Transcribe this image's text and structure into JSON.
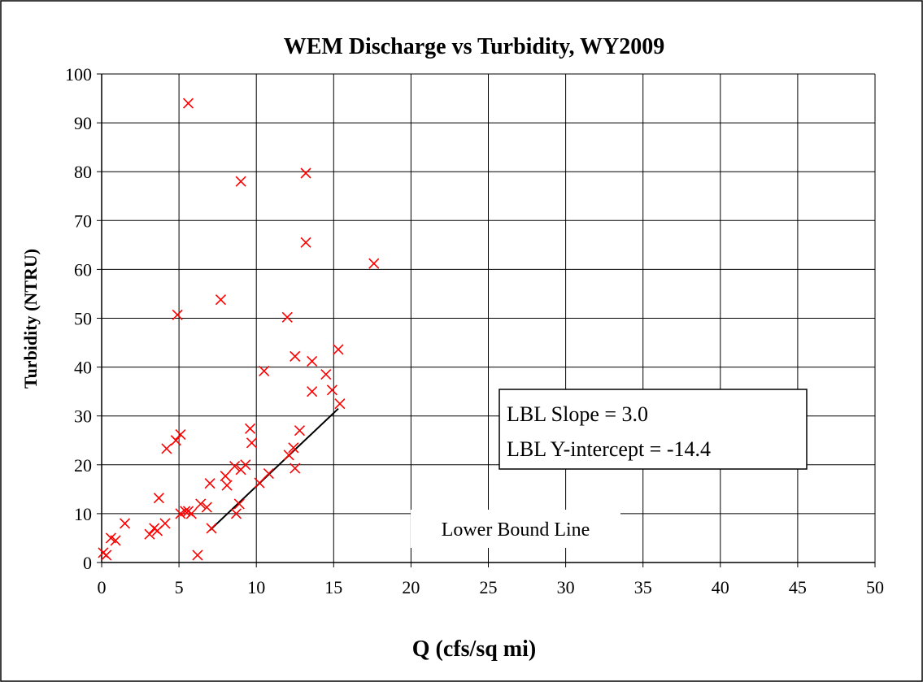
{
  "chart_data": {
    "type": "scatter",
    "title": "WEM Discharge vs Turbidity, WY2009",
    "xlabel": "Q (cfs/sq mi)",
    "ylabel": "Turbidity (NTRU)",
    "xlim": [
      0,
      50
    ],
    "ylim": [
      0,
      100
    ],
    "x_ticks": [
      0,
      5,
      10,
      15,
      20,
      25,
      30,
      35,
      40,
      45,
      50
    ],
    "y_ticks": [
      0,
      10,
      20,
      30,
      40,
      50,
      60,
      70,
      80,
      90,
      100
    ],
    "grid": true,
    "marker": "x",
    "marker_color": "#ff0000",
    "line_color": "#000000",
    "series": [
      {
        "values": [
          [
            0.1,
            2.0
          ],
          [
            0.3,
            1.5
          ],
          [
            0.6,
            5.0
          ],
          [
            0.9,
            4.5
          ],
          [
            1.5,
            8.0
          ],
          [
            3.1,
            5.8
          ],
          [
            3.4,
            7.0
          ],
          [
            3.6,
            6.5
          ],
          [
            3.7,
            13.2
          ],
          [
            4.1,
            8.0
          ],
          [
            4.2,
            23.3
          ],
          [
            4.8,
            25.0
          ],
          [
            4.9,
            50.7
          ],
          [
            5.1,
            26.2
          ],
          [
            5.1,
            10.0
          ],
          [
            5.4,
            10.5
          ],
          [
            5.6,
            10.5
          ],
          [
            5.6,
            94.0
          ],
          [
            5.8,
            10.0
          ],
          [
            6.2,
            1.5
          ],
          [
            6.4,
            12.0
          ],
          [
            6.8,
            11.3
          ],
          [
            7.0,
            16.2
          ],
          [
            7.1,
            7.0
          ],
          [
            7.7,
            53.8
          ],
          [
            8.0,
            17.7
          ],
          [
            8.1,
            15.8
          ],
          [
            8.6,
            19.7
          ],
          [
            8.7,
            10.0
          ],
          [
            8.9,
            12.0
          ],
          [
            9.0,
            78.0
          ],
          [
            9.0,
            19.0
          ],
          [
            9.3,
            20.0
          ],
          [
            9.6,
            27.4
          ],
          [
            9.7,
            24.5
          ],
          [
            10.2,
            16.3
          ],
          [
            10.5,
            39.2
          ],
          [
            10.8,
            18.2
          ],
          [
            12.0,
            50.2
          ],
          [
            12.1,
            22.0
          ],
          [
            12.4,
            23.5
          ],
          [
            12.5,
            19.3
          ],
          [
            12.5,
            42.2
          ],
          [
            12.8,
            27.0
          ],
          [
            13.2,
            79.7
          ],
          [
            13.2,
            65.5
          ],
          [
            13.6,
            41.2
          ],
          [
            13.6,
            35.0
          ],
          [
            14.5,
            38.5
          ],
          [
            14.9,
            35.3
          ],
          [
            15.3,
            43.6
          ],
          [
            15.4,
            32.5
          ],
          [
            17.6,
            61.2
          ]
        ]
      }
    ],
    "lines": [
      {
        "label": "Lower Bound Line",
        "from": [
          7.0,
          6.6
        ],
        "to": [
          15.3,
          31.5
        ]
      }
    ],
    "annotations": [
      {
        "text": "Lower Bound Line",
        "x": 28.2,
        "y": 8.0
      },
      {
        "text": "LBL Slope = 3.0",
        "x": 27.3,
        "y": 30.5
      },
      {
        "text": "LBL Y-intercept = -14.4",
        "x": 27.3,
        "y": 22.0
      }
    ]
  }
}
